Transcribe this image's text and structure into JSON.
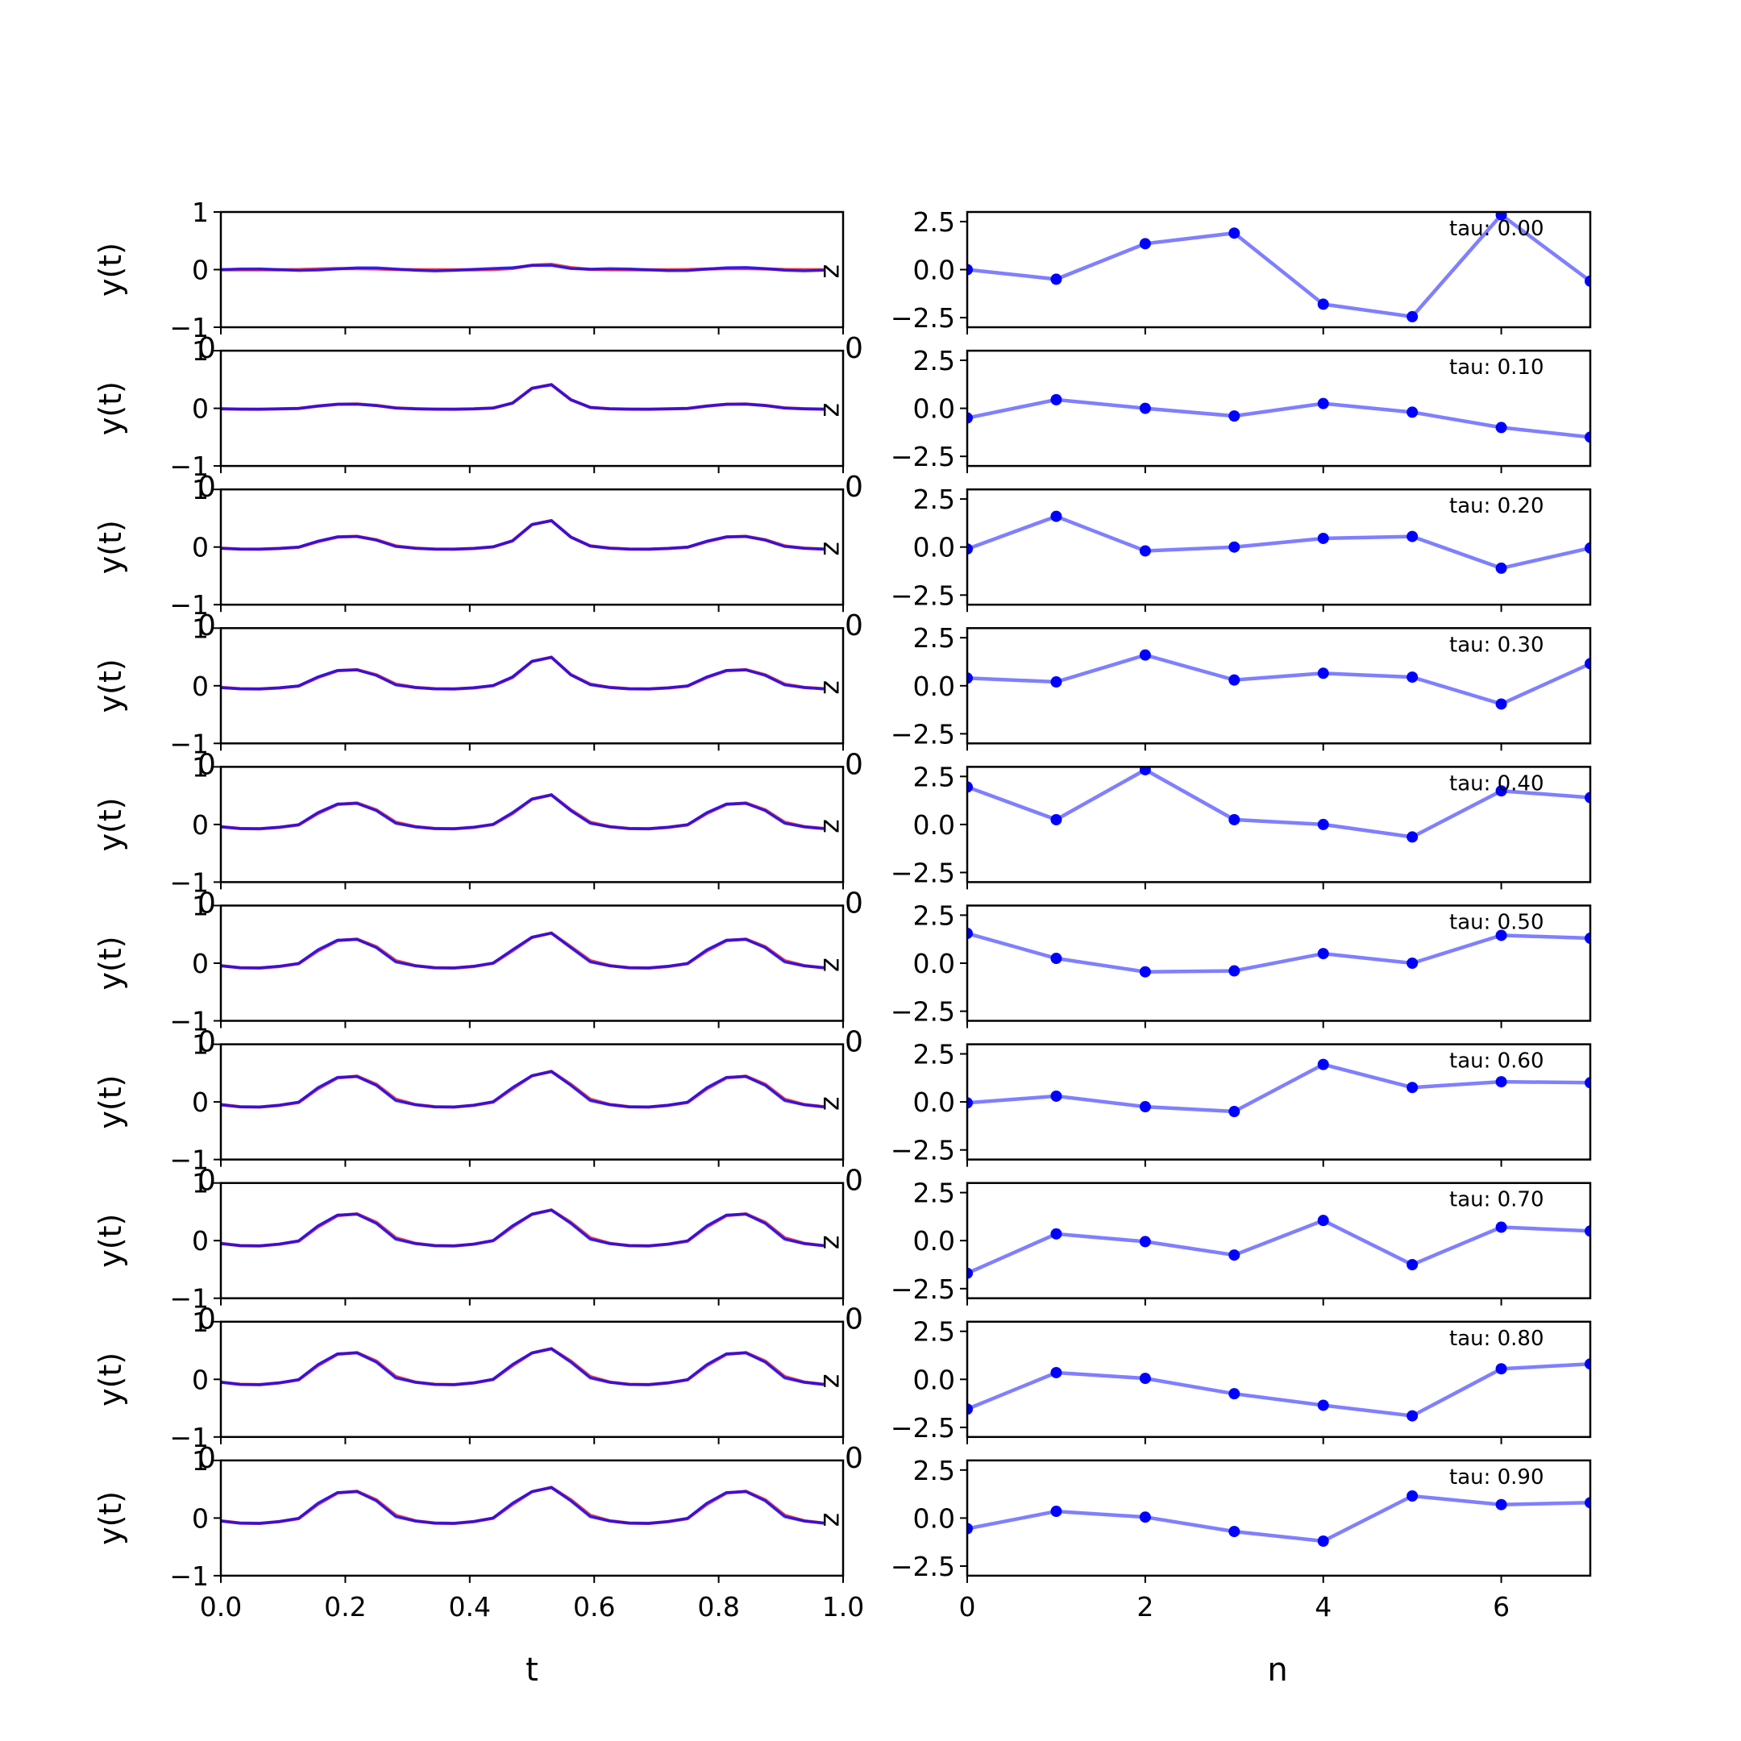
{
  "figure": {
    "left_panel_color_red": "#e0203a",
    "left_panel_color_blue": "#0000ff",
    "right_panel_color": "#0000ff"
  },
  "left": {
    "ylabel": "y(t)",
    "xlabel": "t",
    "xlim": [
      0,
      1
    ],
    "ylim": [
      -1,
      1
    ],
    "xticks": [
      "0.0",
      "0.2",
      "0.4",
      "0.6",
      "0.8",
      "1.0"
    ],
    "yticks": [
      "1",
      "0",
      "−1"
    ],
    "stray_right_label": "z",
    "stray_left_label": "0"
  },
  "right": {
    "xlabel": "n",
    "xlim": [
      0,
      7
    ],
    "ylim": [
      -3,
      3
    ],
    "xticks": [
      "0",
      "2",
      "4",
      "6"
    ],
    "yticks": [
      "2.5",
      "0.0",
      "−2.5"
    ],
    "stray_left_label": "0"
  },
  "chart_data": [
    {
      "type": "line",
      "panel": "left",
      "xlabel": "t",
      "ylabel": "y(t)",
      "xlim": [
        0,
        1
      ],
      "ylim": [
        -1,
        1
      ],
      "rows": [
        {
          "tau": 0.0,
          "amp": 0.02,
          "bump": 0.1
        },
        {
          "tau": 0.1,
          "amp": 0.08,
          "bump": 0.45
        },
        {
          "tau": 0.2,
          "amp": 0.2,
          "bump": 0.48
        },
        {
          "tau": 0.3,
          "amp": 0.3,
          "bump": 0.5
        },
        {
          "tau": 0.4,
          "amp": 0.4,
          "bump": 0.5
        },
        {
          "tau": 0.5,
          "amp": 0.45,
          "bump": 0.5
        },
        {
          "tau": 0.6,
          "amp": 0.48,
          "bump": 0.5
        },
        {
          "tau": 0.7,
          "amp": 0.5,
          "bump": 0.5
        },
        {
          "tau": 0.8,
          "amp": 0.5,
          "bump": 0.5
        },
        {
          "tau": 0.9,
          "amp": 0.5,
          "bump": 0.5
        }
      ]
    },
    {
      "type": "line",
      "panel": "right",
      "xlabel": "n",
      "xlim": [
        0,
        7
      ],
      "ylim": [
        -3,
        3
      ],
      "x": [
        0,
        1,
        2,
        3,
        4,
        5,
        6,
        7
      ],
      "series": [
        {
          "label": "tau: 0.00",
          "values": [
            0.0,
            -0.5,
            1.35,
            1.9,
            -1.8,
            -2.45,
            2.85,
            -0.6
          ]
        },
        {
          "label": "tau: 0.10",
          "values": [
            -0.5,
            0.45,
            0.0,
            -0.4,
            0.25,
            -0.2,
            -1.0,
            -1.5
          ]
        },
        {
          "label": "tau: 0.20",
          "values": [
            -0.1,
            1.6,
            -0.2,
            0.0,
            0.45,
            0.55,
            -1.1,
            -0.05
          ]
        },
        {
          "label": "tau: 0.30",
          "values": [
            0.4,
            0.2,
            1.6,
            0.3,
            0.65,
            0.45,
            -0.95,
            1.15
          ]
        },
        {
          "label": "tau: 0.40",
          "values": [
            1.95,
            0.25,
            2.85,
            0.25,
            0.0,
            -0.65,
            1.75,
            1.4
          ]
        },
        {
          "label": "tau: 0.50",
          "values": [
            1.55,
            0.25,
            -0.45,
            -0.4,
            0.5,
            0.0,
            1.45,
            1.3
          ]
        },
        {
          "label": "tau: 0.60",
          "values": [
            -0.05,
            0.3,
            -0.25,
            -0.5,
            1.95,
            0.75,
            1.05,
            1.0
          ]
        },
        {
          "label": "tau: 0.70",
          "values": [
            -1.7,
            0.35,
            -0.05,
            -0.75,
            1.05,
            -1.25,
            0.7,
            0.5
          ]
        },
        {
          "label": "tau: 0.80",
          "values": [
            -1.55,
            0.35,
            0.05,
            -0.75,
            -1.35,
            -1.9,
            0.55,
            0.8
          ]
        },
        {
          "label": "tau: 0.90",
          "values": [
            -0.55,
            0.35,
            0.05,
            -0.7,
            -1.2,
            1.15,
            0.7,
            0.8
          ]
        }
      ]
    }
  ]
}
